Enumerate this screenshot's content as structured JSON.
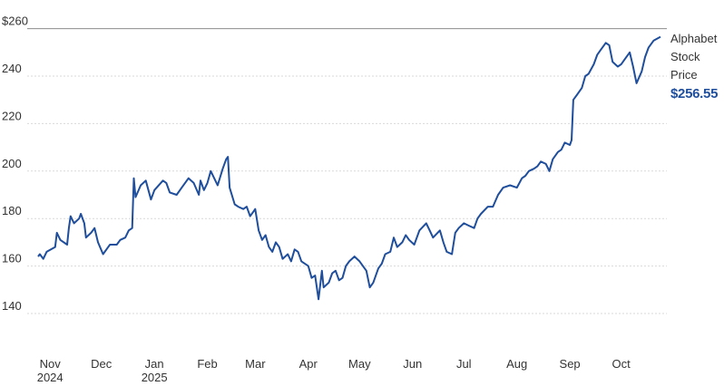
{
  "chart_data": {
    "type": "line",
    "title": "",
    "xlabel": "",
    "ylabel": "",
    "ylim": [
      130,
      260
    ],
    "y_ticks": [
      {
        "value": 260,
        "label": "$260"
      },
      {
        "value": 240,
        "label": "240"
      },
      {
        "value": 220,
        "label": "220"
      },
      {
        "value": 200,
        "label": "200"
      },
      {
        "value": 180,
        "label": "180"
      },
      {
        "value": 160,
        "label": "160"
      },
      {
        "value": 140,
        "label": "140"
      }
    ],
    "x_range": [
      "2024-10-25",
      "2025-10-24"
    ],
    "x_ticks": [
      {
        "date": "2024-11-01",
        "label": "Nov",
        "sublabel": "2024"
      },
      {
        "date": "2024-12-01",
        "label": "Dec",
        "sublabel": ""
      },
      {
        "date": "2025-01-01",
        "label": "Jan",
        "sublabel": "2025"
      },
      {
        "date": "2025-02-01",
        "label": "Feb",
        "sublabel": ""
      },
      {
        "date": "2025-03-01",
        "label": "Mar",
        "sublabel": ""
      },
      {
        "date": "2025-04-01",
        "label": "Apr",
        "sublabel": ""
      },
      {
        "date": "2025-05-01",
        "label": "May",
        "sublabel": ""
      },
      {
        "date": "2025-06-01",
        "label": "Jun",
        "sublabel": ""
      },
      {
        "date": "2025-07-01",
        "label": "Jul",
        "sublabel": ""
      },
      {
        "date": "2025-08-01",
        "label": "Aug",
        "sublabel": ""
      },
      {
        "date": "2025-09-01",
        "label": "Sep",
        "sublabel": ""
      },
      {
        "date": "2025-10-01",
        "label": "Oct",
        "sublabel": ""
      }
    ],
    "grid": true,
    "legend_position": "right",
    "colors": {
      "line": "#1f4e9c",
      "grid": "#d9d9d9",
      "top_rule": "#8c8c8c",
      "text": "#333333"
    },
    "series": [
      {
        "name": "Alphabet Stock Price",
        "last_value_label": "$256.55",
        "points": [
          [
            "2024-10-25",
            164
          ],
          [
            "2024-10-26",
            165
          ],
          [
            "2024-10-28",
            163
          ],
          [
            "2024-10-30",
            166
          ],
          [
            "2024-11-04",
            168
          ],
          [
            "2024-11-05",
            174
          ],
          [
            "2024-11-07",
            171
          ],
          [
            "2024-11-11",
            169
          ],
          [
            "2024-11-12",
            176
          ],
          [
            "2024-11-13",
            181
          ],
          [
            "2024-11-15",
            178
          ],
          [
            "2024-11-18",
            180
          ],
          [
            "2024-11-19",
            182
          ],
          [
            "2024-11-21",
            178
          ],
          [
            "2024-11-22",
            172
          ],
          [
            "2024-11-25",
            174
          ],
          [
            "2024-11-27",
            176
          ],
          [
            "2024-11-29",
            170
          ],
          [
            "2024-12-02",
            165
          ],
          [
            "2024-12-05",
            168
          ],
          [
            "2024-12-06",
            169
          ],
          [
            "2024-12-10",
            169
          ],
          [
            "2024-12-12",
            171
          ],
          [
            "2024-12-15",
            172
          ],
          [
            "2024-12-17",
            175
          ],
          [
            "2024-12-19",
            176
          ],
          [
            "2024-12-20",
            197
          ],
          [
            "2024-12-21",
            189
          ],
          [
            "2024-12-24",
            194
          ],
          [
            "2024-12-27",
            196
          ],
          [
            "2024-12-30",
            188
          ],
          [
            "2025-01-01",
            192
          ],
          [
            "2025-01-06",
            196
          ],
          [
            "2025-01-08",
            195
          ],
          [
            "2025-01-10",
            191
          ],
          [
            "2025-01-14",
            190
          ],
          [
            "2025-01-17",
            193
          ],
          [
            "2025-01-21",
            197
          ],
          [
            "2025-01-24",
            195
          ],
          [
            "2025-01-27",
            190
          ],
          [
            "2025-01-28",
            196
          ],
          [
            "2025-01-30",
            192
          ],
          [
            "2025-02-01",
            195
          ],
          [
            "2025-02-03",
            200
          ],
          [
            "2025-02-05",
            197
          ],
          [
            "2025-02-07",
            194
          ],
          [
            "2025-02-10",
            201
          ],
          [
            "2025-02-12",
            205
          ],
          [
            "2025-02-13",
            206
          ],
          [
            "2025-02-14",
            193
          ],
          [
            "2025-02-17",
            186
          ],
          [
            "2025-02-19",
            185
          ],
          [
            "2025-02-22",
            184
          ],
          [
            "2025-02-24",
            185
          ],
          [
            "2025-02-26",
            181
          ],
          [
            "2025-02-28",
            183
          ],
          [
            "2025-03-01",
            184
          ],
          [
            "2025-03-03",
            175
          ],
          [
            "2025-03-05",
            171
          ],
          [
            "2025-03-07",
            173
          ],
          [
            "2025-03-09",
            168
          ],
          [
            "2025-03-11",
            166
          ],
          [
            "2025-03-13",
            170
          ],
          [
            "2025-03-15",
            168
          ],
          [
            "2025-03-17",
            163
          ],
          [
            "2025-03-20",
            165
          ],
          [
            "2025-03-22",
            162
          ],
          [
            "2025-03-24",
            167
          ],
          [
            "2025-03-26",
            166
          ],
          [
            "2025-03-28",
            162
          ],
          [
            "2025-04-01",
            160
          ],
          [
            "2025-04-03",
            155
          ],
          [
            "2025-04-05",
            156
          ],
          [
            "2025-04-07",
            146
          ],
          [
            "2025-04-09",
            158
          ],
          [
            "2025-04-10",
            151
          ],
          [
            "2025-04-13",
            153
          ],
          [
            "2025-04-15",
            157
          ],
          [
            "2025-04-17",
            158
          ],
          [
            "2025-04-19",
            154
          ],
          [
            "2025-04-21",
            155
          ],
          [
            "2025-04-23",
            160
          ],
          [
            "2025-04-25",
            162
          ],
          [
            "2025-04-28",
            164
          ],
          [
            "2025-05-01",
            162
          ],
          [
            "2025-05-05",
            158
          ],
          [
            "2025-05-07",
            151
          ],
          [
            "2025-05-09",
            153
          ],
          [
            "2025-05-12",
            159
          ],
          [
            "2025-05-14",
            161
          ],
          [
            "2025-05-16",
            165
          ],
          [
            "2025-05-19",
            166
          ],
          [
            "2025-05-21",
            172
          ],
          [
            "2025-05-23",
            168
          ],
          [
            "2025-05-26",
            170
          ],
          [
            "2025-05-28",
            173
          ],
          [
            "2025-05-30",
            171
          ],
          [
            "2025-06-02",
            169
          ],
          [
            "2025-06-05",
            175
          ],
          [
            "2025-06-09",
            178
          ],
          [
            "2025-06-11",
            175
          ],
          [
            "2025-06-13",
            172
          ],
          [
            "2025-06-17",
            175
          ],
          [
            "2025-06-19",
            170
          ],
          [
            "2025-06-21",
            166
          ],
          [
            "2025-06-24",
            165
          ],
          [
            "2025-06-26",
            174
          ],
          [
            "2025-06-28",
            176
          ],
          [
            "2025-07-01",
            178
          ],
          [
            "2025-07-04",
            177
          ],
          [
            "2025-07-07",
            176
          ],
          [
            "2025-07-09",
            180
          ],
          [
            "2025-07-11",
            182
          ],
          [
            "2025-07-15",
            185
          ],
          [
            "2025-07-18",
            185
          ],
          [
            "2025-07-21",
            190
          ],
          [
            "2025-07-24",
            193
          ],
          [
            "2025-07-28",
            194
          ],
          [
            "2025-08-01",
            193
          ],
          [
            "2025-08-04",
            197
          ],
          [
            "2025-08-06",
            198
          ],
          [
            "2025-08-08",
            200
          ],
          [
            "2025-08-11",
            201
          ],
          [
            "2025-08-13",
            202
          ],
          [
            "2025-08-15",
            204
          ],
          [
            "2025-08-18",
            203
          ],
          [
            "2025-08-20",
            200
          ],
          [
            "2025-08-22",
            205
          ],
          [
            "2025-08-25",
            208
          ],
          [
            "2025-08-27",
            209
          ],
          [
            "2025-08-29",
            212
          ],
          [
            "2025-09-01",
            211
          ],
          [
            "2025-09-02",
            213
          ],
          [
            "2025-09-03",
            230
          ],
          [
            "2025-09-05",
            232
          ],
          [
            "2025-09-08",
            235
          ],
          [
            "2025-09-10",
            240
          ],
          [
            "2025-09-12",
            241
          ],
          [
            "2025-09-15",
            245
          ],
          [
            "2025-09-17",
            249
          ],
          [
            "2025-09-19",
            251
          ],
          [
            "2025-09-22",
            254
          ],
          [
            "2025-09-24",
            253
          ],
          [
            "2025-09-26",
            246
          ],
          [
            "2025-09-29",
            244
          ],
          [
            "2025-10-01",
            245
          ],
          [
            "2025-10-03",
            247
          ],
          [
            "2025-10-06",
            250
          ],
          [
            "2025-10-08",
            244
          ],
          [
            "2025-10-10",
            237
          ],
          [
            "2025-10-13",
            242
          ],
          [
            "2025-10-15",
            248
          ],
          [
            "2025-10-17",
            252
          ],
          [
            "2025-10-20",
            255
          ],
          [
            "2025-10-24",
            256.55
          ]
        ]
      }
    ]
  }
}
